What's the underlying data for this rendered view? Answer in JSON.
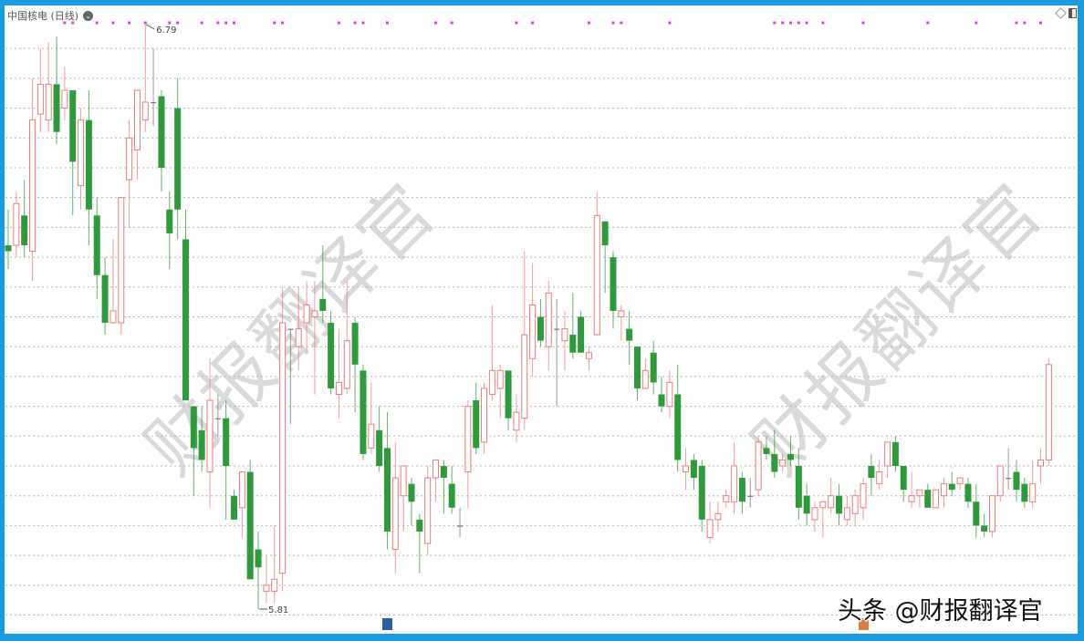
{
  "header": {
    "title": "中国核电 (日线)"
  },
  "colors": {
    "up": "#ef7b7b",
    "down": "#2f9a3c",
    "flat": "#777777",
    "marker": "#e040e0",
    "frame": "#1a9be0",
    "grid": "#b5b5b5"
  },
  "watermark": {
    "text": "财报翻译官",
    "credit": "头条 @财报翻译官"
  },
  "chart_data": {
    "type": "candlestick",
    "title": "中国核电 (日线)",
    "ylim": [
      5.79,
      6.8
    ],
    "grid": true,
    "grid_step": 0.05,
    "annotations": [
      {
        "text": "6.79",
        "bar": 18,
        "price": 6.79,
        "kind": "high"
      },
      {
        "text": "5.81",
        "bar": 32,
        "price": 5.81,
        "kind": "low"
      }
    ],
    "signal_markers_bars": [
      8,
      9,
      12,
      14,
      16,
      18,
      21,
      22,
      25,
      27,
      28,
      29,
      34,
      35,
      42,
      44,
      45,
      48,
      54,
      56,
      64,
      66,
      73,
      76,
      77,
      83,
      96,
      97,
      98,
      99,
      100,
      102,
      107,
      115,
      121,
      126,
      127,
      129
    ],
    "bottom_badges": [
      {
        "bar": 48,
        "color": "#2a5fa0"
      },
      {
        "bar": 107,
        "color": "#e07a40"
      }
    ],
    "ohlc_fields": [
      "open",
      "high",
      "low",
      "close"
    ],
    "candles": [
      [
        6.42,
        6.48,
        6.38,
        6.41
      ],
      [
        6.42,
        6.51,
        6.4,
        6.49
      ],
      [
        6.47,
        6.53,
        6.4,
        6.42
      ],
      [
        6.41,
        6.7,
        6.36,
        6.63
      ],
      [
        6.64,
        6.75,
        6.61,
        6.69
      ],
      [
        6.63,
        6.76,
        6.61,
        6.69
      ],
      [
        6.69,
        6.77,
        6.59,
        6.61
      ],
      [
        6.65,
        6.72,
        6.63,
        6.68
      ],
      [
        6.68,
        6.68,
        6.47,
        6.56
      ],
      [
        6.52,
        6.65,
        6.48,
        6.63
      ],
      [
        6.63,
        6.68,
        6.42,
        6.48
      ],
      [
        6.47,
        6.5,
        6.33,
        6.37
      ],
      [
        6.37,
        6.4,
        6.27,
        6.29
      ],
      [
        6.29,
        6.43,
        6.29,
        6.31
      ],
      [
        6.29,
        6.5,
        6.27,
        6.5
      ],
      [
        6.53,
        6.63,
        6.45,
        6.6
      ],
      [
        6.58,
        6.68,
        6.53,
        6.68
      ],
      [
        6.63,
        6.79,
        6.61,
        6.66
      ],
      [
        6.66,
        6.75,
        6.62,
        6.66
      ],
      [
        6.67,
        6.68,
        6.51,
        6.55
      ],
      [
        6.48,
        6.51,
        6.38,
        6.44
      ],
      [
        6.65,
        6.7,
        6.43,
        6.48
      ],
      [
        6.43,
        6.48,
        6.16,
        6.16
      ],
      [
        6.15,
        6.15,
        6.0,
        6.08
      ],
      [
        6.11,
        6.15,
        6.04,
        6.06
      ],
      [
        6.04,
        6.23,
        5.98,
        6.16
      ],
      [
        6.13,
        6.17,
        6.1,
        6.13
      ],
      [
        6.13,
        6.16,
        5.96,
        6.05
      ],
      [
        6.0,
        6.01,
        5.96,
        5.96
      ],
      [
        5.98,
        6.04,
        5.93,
        6.04
      ],
      [
        6.04,
        6.06,
        5.86,
        5.86
      ],
      [
        5.91,
        5.94,
        5.81,
        5.88
      ],
      [
        5.84,
        5.9,
        5.82,
        5.85
      ],
      [
        5.84,
        5.95,
        5.82,
        5.86
      ],
      [
        5.87,
        6.35,
        5.84,
        6.29
      ],
      [
        6.28,
        6.28,
        6.12,
        6.28
      ],
      [
        6.25,
        6.35,
        6.21,
        6.28
      ],
      [
        6.29,
        6.36,
        6.24,
        6.32
      ],
      [
        6.3,
        6.36,
        6.17,
        6.31
      ],
      [
        6.33,
        6.42,
        6.29,
        6.31
      ],
      [
        6.29,
        6.31,
        6.17,
        6.18
      ],
      [
        6.17,
        6.28,
        6.13,
        6.19
      ],
      [
        6.18,
        6.36,
        6.17,
        6.26
      ],
      [
        6.29,
        6.3,
        6.14,
        6.22
      ],
      [
        6.21,
        6.22,
        6.06,
        6.07
      ],
      [
        6.08,
        6.19,
        6.07,
        6.12
      ],
      [
        6.11,
        6.15,
        6.04,
        6.05
      ],
      [
        6.08,
        6.14,
        5.91,
        5.94
      ],
      [
        5.91,
        6.09,
        5.87,
        6.03
      ],
      [
        6.0,
        6.05,
        5.94,
        6.05
      ],
      [
        6.02,
        6.03,
        5.95,
        5.99
      ],
      [
        5.96,
        5.97,
        5.87,
        5.94
      ],
      [
        5.92,
        6.05,
        5.9,
        6.03
      ],
      [
        6.03,
        6.06,
        5.99,
        6.06
      ],
      [
        6.05,
        6.06,
        5.97,
        6.03
      ],
      [
        6.02,
        6.05,
        5.97,
        5.98
      ],
      [
        5.95,
        5.98,
        5.93,
        5.95
      ],
      [
        6.04,
        6.16,
        5.98,
        6.15
      ],
      [
        6.16,
        6.19,
        6.07,
        6.08
      ],
      [
        6.09,
        6.19,
        6.07,
        6.18
      ],
      [
        6.17,
        6.32,
        6.16,
        6.21
      ],
      [
        6.18,
        6.22,
        6.13,
        6.21
      ],
      [
        6.21,
        6.21,
        6.11,
        6.13
      ],
      [
        6.11,
        6.17,
        6.09,
        6.14
      ],
      [
        6.13,
        6.41,
        6.11,
        6.27
      ],
      [
        6.23,
        6.39,
        6.2,
        6.32
      ],
      [
        6.3,
        6.33,
        6.25,
        6.26
      ],
      [
        6.25,
        6.36,
        6.21,
        6.34
      ],
      [
        6.28,
        6.33,
        6.15,
        6.28
      ],
      [
        6.26,
        6.31,
        6.21,
        6.28
      ],
      [
        6.27,
        6.34,
        6.23,
        6.24
      ],
      [
        6.3,
        6.31,
        6.24,
        6.24
      ],
      [
        6.23,
        6.25,
        6.21,
        6.24
      ],
      [
        6.27,
        6.51,
        6.27,
        6.47
      ],
      [
        6.46,
        6.46,
        6.34,
        6.42
      ],
      [
        6.4,
        6.41,
        6.28,
        6.31
      ],
      [
        6.3,
        6.32,
        6.26,
        6.31
      ],
      [
        6.28,
        6.31,
        6.22,
        6.26
      ],
      [
        6.25,
        6.25,
        6.16,
        6.18
      ],
      [
        6.18,
        6.23,
        6.18,
        6.21
      ],
      [
        6.24,
        6.26,
        6.17,
        6.19
      ],
      [
        6.17,
        6.2,
        6.14,
        6.15
      ],
      [
        6.15,
        6.21,
        6.13,
        6.19
      ],
      [
        6.17,
        6.22,
        6.04,
        6.06
      ],
      [
        6.04,
        6.08,
        6.01,
        6.05
      ],
      [
        6.06,
        6.07,
        6.01,
        6.03
      ],
      [
        6.05,
        6.06,
        5.94,
        5.96
      ],
      [
        5.93,
        5.99,
        5.92,
        5.96
      ],
      [
        5.96,
        5.99,
        5.94,
        5.97
      ],
      [
        5.99,
        6.01,
        5.98,
        6.0
      ],
      [
        5.99,
        6.09,
        5.97,
        6.05
      ],
      [
        6.03,
        6.04,
        5.97,
        5.99
      ],
      [
        6.0,
        6.03,
        5.98,
        6.0
      ],
      [
        6.01,
        6.1,
        6.0,
        6.09
      ],
      [
        6.08,
        6.1,
        6.06,
        6.07
      ],
      [
        6.07,
        6.11,
        6.03,
        6.04
      ],
      [
        6.05,
        6.07,
        6.04,
        6.06
      ],
      [
        6.07,
        6.1,
        6.05,
        6.06
      ],
      [
        6.05,
        6.08,
        5.96,
        5.98
      ],
      [
        6.0,
        6.02,
        5.95,
        5.97
      ],
      [
        5.96,
        5.99,
        5.94,
        5.98
      ],
      [
        5.98,
        5.99,
        5.93,
        5.99
      ],
      [
        5.98,
        6.03,
        5.97,
        6.0
      ],
      [
        6.0,
        6.02,
        5.95,
        5.97
      ],
      [
        5.96,
        6.0,
        5.95,
        5.98
      ],
      [
        5.97,
        6.01,
        5.95,
        6.0
      ],
      [
        5.98,
        6.03,
        5.96,
        6.02
      ],
      [
        6.05,
        6.07,
        6.0,
        6.03
      ],
      [
        6.02,
        6.06,
        6.01,
        6.04
      ],
      [
        6.05,
        6.09,
        6.03,
        6.09
      ],
      [
        6.09,
        6.1,
        6.04,
        6.05
      ],
      [
        6.05,
        6.05,
        5.99,
        6.01
      ],
      [
        5.99,
        6.04,
        5.98,
        6.0
      ],
      [
        6.0,
        6.01,
        5.98,
        6.01
      ],
      [
        6.01,
        6.02,
        5.98,
        5.98
      ],
      [
        5.98,
        6.01,
        5.98,
        6.01
      ],
      [
        6.0,
        6.03,
        5.98,
        6.02
      ],
      [
        6.02,
        6.04,
        6.0,
        6.01
      ],
      [
        6.02,
        6.03,
        6.01,
        6.03
      ],
      [
        6.02,
        6.03,
        5.98,
        5.99
      ],
      [
        5.99,
        6.02,
        5.93,
        5.95
      ],
      [
        5.95,
        5.97,
        5.93,
        5.94
      ],
      [
        5.94,
        6.0,
        5.93,
        6.0
      ],
      [
        6.0,
        6.05,
        5.99,
        6.05
      ],
      [
        6.03,
        6.08,
        6.01,
        6.03
      ],
      [
        6.04,
        6.06,
        5.99,
        6.01
      ],
      [
        6.02,
        6.03,
        5.98,
        5.99
      ],
      [
        5.99,
        6.06,
        5.98,
        6.02
      ],
      [
        6.05,
        6.08,
        6.02,
        6.06
      ],
      [
        6.06,
        6.23,
        6.05,
        6.22
      ]
    ]
  }
}
